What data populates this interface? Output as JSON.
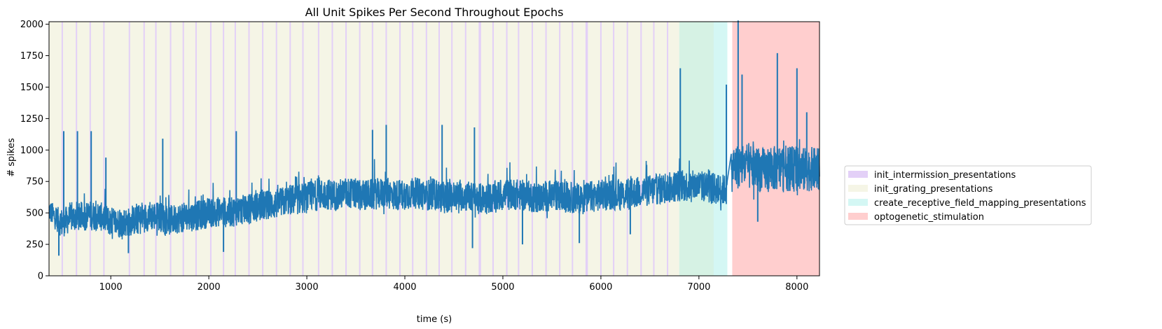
{
  "chart_data": {
    "type": "line",
    "title": "All Unit Spikes Per Second Throughout Epochs",
    "xlabel": "time (s)",
    "ylabel": "# spikes",
    "xlim": [
      370,
      8230
    ],
    "ylim": [
      0,
      2020
    ],
    "xticks": [
      1000,
      2000,
      3000,
      4000,
      5000,
      6000,
      7000,
      8000
    ],
    "yticks": [
      0,
      250,
      500,
      750,
      1000,
      1250,
      1500,
      1750,
      2000
    ],
    "grid": false,
    "legend_position": "outside-right",
    "line_color": "#1f77b4",
    "series": [
      {
        "x": [
          370,
          450,
          500,
          550,
          600,
          700,
          800,
          900,
          1000,
          1100,
          1200,
          1300,
          1400,
          1500,
          1600,
          1700,
          1800,
          1900,
          2000,
          2100,
          2200,
          2300,
          2400,
          2500,
          2600,
          2700,
          2800,
          2900,
          3000,
          3100,
          3200,
          3300,
          3400,
          3500,
          3600,
          3700,
          3800,
          3900,
          4000,
          4100,
          4200,
          4300,
          4400,
          4500,
          4600,
          4700,
          4800,
          4900,
          5000,
          5100,
          5200,
          5300,
          5400,
          5500,
          5600,
          5700,
          5800,
          5900,
          6000,
          6100,
          6200,
          6300,
          6400,
          6500,
          6600,
          6700,
          6800,
          6900,
          7000,
          7100,
          7200,
          7280,
          7350,
          7450,
          7550,
          7650,
          7750,
          7850,
          7950,
          8050,
          8150,
          8230
        ],
        "y": [
          520,
          450,
          420,
          440,
          460,
          470,
          480,
          470,
          430,
          420,
          430,
          450,
          480,
          470,
          440,
          460,
          470,
          480,
          500,
          510,
          500,
          520,
          530,
          550,
          560,
          570,
          600,
          610,
          620,
          640,
          650,
          640,
          660,
          650,
          640,
          650,
          660,
          640,
          650,
          660,
          640,
          650,
          620,
          630,
          640,
          620,
          610,
          620,
          640,
          650,
          640,
          630,
          620,
          640,
          630,
          620,
          610,
          630,
          640,
          650,
          640,
          650,
          670,
          680,
          690,
          700,
          720,
          710,
          720,
          700,
          690,
          680,
          860,
          880,
          860,
          840,
          850,
          860,
          850,
          840,
          850,
          840
        ],
        "band": [
          180,
          200,
          240,
          230,
          220,
          230,
          240,
          230,
          240,
          240,
          230,
          240,
          240,
          240,
          240,
          240,
          240,
          240,
          240,
          240,
          240,
          240,
          240,
          240,
          240,
          240,
          250,
          250,
          250,
          250,
          250,
          250,
          250,
          250,
          250,
          250,
          250,
          250,
          250,
          250,
          250,
          250,
          250,
          250,
          250,
          250,
          250,
          250,
          250,
          250,
          250,
          250,
          250,
          250,
          250,
          250,
          250,
          250,
          250,
          250,
          250,
          250,
          250,
          250,
          250,
          250,
          260,
          250,
          250,
          250,
          250,
          250,
          350,
          380,
          370,
          360,
          360,
          370,
          360,
          360,
          350,
          350
        ]
      }
    ],
    "dips": [
      [
        470,
        160
      ],
      [
        1180,
        180
      ],
      [
        2150,
        190
      ],
      [
        4690,
        220
      ],
      [
        5200,
        250
      ],
      [
        5780,
        260
      ],
      [
        6300,
        330
      ],
      [
        7600,
        430
      ]
    ],
    "spikes": [
      [
        520,
        1150
      ],
      [
        660,
        1150
      ],
      [
        800,
        1150
      ],
      [
        950,
        940
      ],
      [
        1530,
        1090
      ],
      [
        2280,
        1150
      ],
      [
        3670,
        1160
      ],
      [
        3810,
        1200
      ],
      [
        4380,
        1200
      ],
      [
        4710,
        1180
      ],
      [
        6810,
        1650
      ],
      [
        7280,
        1520
      ],
      [
        7400,
        2030
      ],
      [
        7440,
        1600
      ],
      [
        7800,
        1770
      ],
      [
        8000,
        1650
      ],
      [
        8100,
        1300
      ]
    ],
    "intermission_lines": [
      505,
      650,
      790,
      930,
      1190,
      1340,
      1460,
      1610,
      1740,
      1870,
      2020,
      2150,
      2270,
      2410,
      2550,
      2690,
      2830,
      2960,
      3120,
      3260,
      3400,
      3540,
      3670,
      3810,
      3950,
      4080,
      4220,
      4350,
      4480,
      4620,
      4760,
      4770,
      4900,
      5040,
      5160,
      5300,
      5440,
      5580,
      5710,
      5850,
      5860,
      6000,
      6130,
      6270,
      6410,
      6540,
      6680
    ],
    "spans": [
      {
        "label": "init_intermission_presentations",
        "color": "#e3d0f7",
        "start": null,
        "end": null
      },
      {
        "label": "init_grating_presentations",
        "color": "#f5f5e6",
        "start": 370,
        "end": 6800
      },
      {
        "label": "create_receptive_field_mapping_presentations",
        "color": "#d4f7f4",
        "start": 6800,
        "end": 7290
      },
      {
        "label": "optogenetic_stimulation",
        "color": "#ffcece",
        "start": 7340,
        "end": 8230
      }
    ],
    "overlap_color": "#d6f2e4",
    "overlap_range": [
      6800,
      7150
    ]
  }
}
